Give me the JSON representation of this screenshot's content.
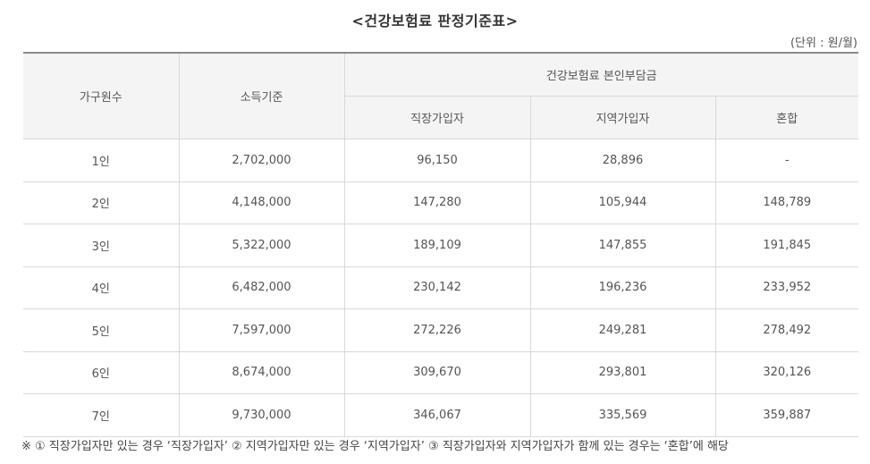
{
  "title": "<건강보험료 판정기준표>",
  "unit": "(단위 : 원/월)",
  "table": {
    "headers": {
      "household": "가구원수",
      "income": "소득기준",
      "premium_group": "건강보험료 본인부담금",
      "employee": "직장가입자",
      "regional": "지역가입자",
      "mixed": "혼합"
    },
    "rows": [
      {
        "household": "1인",
        "income": "2,702,000",
        "employee": "96,150",
        "regional": "28,896",
        "mixed": "-"
      },
      {
        "household": "2인",
        "income": "4,148,000",
        "employee": "147,280",
        "regional": "105,944",
        "mixed": "148,789"
      },
      {
        "household": "3인",
        "income": "5,322,000",
        "employee": "189,109",
        "regional": "147,855",
        "mixed": "191,845"
      },
      {
        "household": "4인",
        "income": "6,482,000",
        "employee": "230,142",
        "regional": "196,236",
        "mixed": "233,952"
      },
      {
        "household": "5인",
        "income": "7,597,000",
        "employee": "272,226",
        "regional": "249,281",
        "mixed": "278,492"
      },
      {
        "household": "6인",
        "income": "8,674,000",
        "employee": "309,670",
        "regional": "293,801",
        "mixed": "320,126"
      },
      {
        "household": "7인",
        "income": "9,730,000",
        "employee": "346,067",
        "regional": "335,569",
        "mixed": "359,887"
      }
    ]
  },
  "footnote": "※ ① 직장가입자만 있는 경우 ‘직장가입자’ ② 지역가입자만 있는 경우 ‘지역가입자’ ③ 직장가입자와 지역가입자가 함께 있는 경우는 ‘혼합’에 해당"
}
